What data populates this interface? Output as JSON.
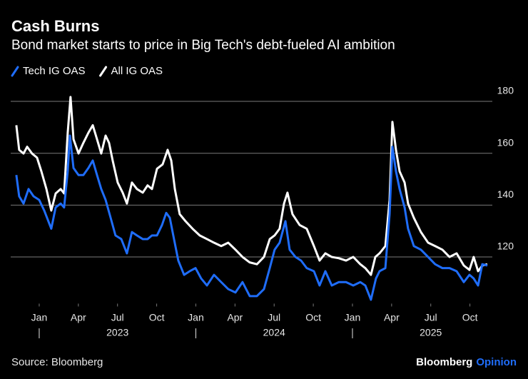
{
  "chart_data": {
    "type": "line",
    "title": "Cash Burns",
    "subtitle": "Bond market starts to price in Big Tech's debt-fueled AI ambition",
    "source": "Source: Bloomberg",
    "brand": "Bloomberg",
    "brand_suffix": "Opinion",
    "grid": true,
    "legend": "top-left",
    "xlim": [
      2022.818,
      2025.893
    ],
    "ylim": [
      102,
      184
    ],
    "yticks": [
      120,
      140,
      160,
      180
    ],
    "xticks": [
      {
        "value": 2023,
        "label": "Jan"
      },
      {
        "value": 2023.25,
        "label": "Apr"
      },
      {
        "value": 2023.5,
        "label": "Jul"
      },
      {
        "value": 2023.75,
        "label": "Oct"
      },
      {
        "value": 2024,
        "label": "Jan"
      },
      {
        "value": 2024.25,
        "label": "Apr"
      },
      {
        "value": 2024.5,
        "label": "Jul"
      },
      {
        "value": 2024.75,
        "label": "Oct"
      },
      {
        "value": 2025,
        "label": "Jan"
      },
      {
        "value": 2025.25,
        "label": "Apr"
      },
      {
        "value": 2025.5,
        "label": "Jul"
      },
      {
        "value": 2025.75,
        "label": "Oct"
      }
    ],
    "xgroups": [
      {
        "value": 2023.5,
        "label": "2023"
      },
      {
        "value": 2024.5,
        "label": "2024"
      },
      {
        "value": 2025.5,
        "label": "2025"
      }
    ],
    "series": [
      {
        "name": "Tech IG OAS",
        "color": "#1f6dfa",
        "x": [
          2022.854,
          2022.872,
          2022.9,
          2022.932,
          2022.964,
          2023.0,
          2023.032,
          2023.077,
          2023.105,
          2023.137,
          2023.159,
          2023.182,
          2023.196,
          2023.219,
          2023.251,
          2023.282,
          2023.314,
          2023.342,
          2023.369,
          2023.396,
          2023.424,
          2023.456,
          2023.487,
          2023.524,
          2023.56,
          2023.592,
          2023.624,
          2023.661,
          2023.692,
          2023.72,
          2023.752,
          2023.784,
          2023.811,
          2023.834,
          2023.856,
          2023.888,
          2023.925,
          2023.961,
          2023.998,
          2024.034,
          2024.071,
          2024.116,
          2024.162,
          2024.207,
          2024.253,
          2024.298,
          2024.344,
          2024.39,
          2024.435,
          2024.472,
          2024.503,
          2024.535,
          2024.572,
          2024.599,
          2024.636,
          2024.672,
          2024.708,
          2024.754,
          2024.79,
          2024.827,
          2024.868,
          2024.913,
          2024.959,
          2025.005,
          2025.05,
          2025.082,
          2025.118,
          2025.15,
          2025.173,
          2025.21,
          2025.237,
          2025.255,
          2025.278,
          2025.301,
          2025.333,
          2025.355,
          2025.392,
          2025.437,
          2025.483,
          2025.528,
          2025.574,
          2025.62,
          2025.665,
          2025.711,
          2025.747,
          2025.774,
          2025.802,
          2025.829,
          2025.861
        ],
        "values": [
          151.6,
          143.4,
          140.6,
          146.2,
          143.4,
          142.0,
          137.9,
          130.9,
          139.1,
          140.6,
          139.1,
          153.0,
          166.8,
          154.3,
          151.6,
          151.6,
          154.3,
          157.2,
          151.6,
          146.2,
          142.0,
          135.1,
          128.3,
          126.9,
          121.4,
          129.6,
          128.3,
          126.9,
          126.9,
          128.3,
          128.3,
          132.3,
          137.0,
          135.1,
          128.3,
          118.6,
          113.1,
          114.5,
          115.7,
          111.7,
          109.0,
          113.1,
          110.3,
          107.6,
          106.3,
          110.3,
          104.9,
          104.9,
          107.6,
          115.7,
          122.8,
          125.5,
          133.8,
          122.8,
          120.0,
          118.6,
          115.7,
          114.5,
          109.0,
          114.5,
          109.0,
          110.3,
          110.3,
          109.0,
          110.3,
          109.0,
          103.5,
          111.7,
          114.5,
          115.7,
          136.5,
          162.5,
          153.0,
          146.2,
          139.1,
          130.9,
          124.2,
          122.8,
          120.0,
          117.2,
          115.7,
          115.7,
          114.5,
          110.3,
          113.1,
          111.7,
          109.0,
          117.2,
          116.7
        ]
      },
      {
        "name": "All IG OAS",
        "color": "#ffffff",
        "x": [
          2022.854,
          2022.872,
          2022.9,
          2022.923,
          2022.954,
          2022.986,
          2023.014,
          2023.046,
          2023.077,
          2023.105,
          2023.137,
          2023.159,
          2023.182,
          2023.2,
          2023.219,
          2023.251,
          2023.282,
          2023.314,
          2023.342,
          2023.369,
          2023.396,
          2023.424,
          2023.446,
          2023.469,
          2023.501,
          2023.533,
          2023.56,
          2023.592,
          2023.624,
          2023.661,
          2023.692,
          2023.72,
          2023.752,
          2023.788,
          2023.82,
          2023.843,
          2023.866,
          2023.897,
          2023.934,
          2023.979,
          2024.025,
          2024.071,
          2024.116,
          2024.162,
          2024.207,
          2024.253,
          2024.298,
          2024.344,
          2024.39,
          2024.435,
          2024.472,
          2024.503,
          2024.535,
          2024.563,
          2024.585,
          2024.617,
          2024.663,
          2024.708,
          2024.754,
          2024.79,
          2024.827,
          2024.868,
          2024.913,
          2024.959,
          2025.005,
          2025.05,
          2025.082,
          2025.118,
          2025.146,
          2025.173,
          2025.21,
          2025.237,
          2025.255,
          2025.278,
          2025.301,
          2025.333,
          2025.355,
          2025.392,
          2025.437,
          2025.483,
          2025.528,
          2025.574,
          2025.62,
          2025.665,
          2025.711,
          2025.747,
          2025.774,
          2025.802,
          2025.829,
          2025.861
        ],
        "values": [
          170.8,
          161.3,
          159.9,
          162.5,
          159.9,
          158.3,
          153.0,
          146.2,
          137.9,
          144.5,
          146.2,
          144.5,
          167.9,
          181.7,
          165.4,
          159.9,
          164.0,
          167.9,
          170.8,
          165.4,
          159.9,
          166.8,
          164.0,
          157.2,
          148.7,
          144.8,
          140.6,
          148.7,
          146.2,
          144.8,
          147.6,
          146.2,
          154.0,
          155.7,
          161.3,
          157.2,
          146.2,
          136.5,
          133.8,
          130.9,
          128.3,
          126.9,
          125.5,
          124.2,
          125.5,
          122.8,
          120.0,
          117.9,
          117.2,
          120.0,
          126.9,
          128.3,
          130.9,
          140.6,
          144.8,
          136.5,
          132.3,
          130.9,
          124.2,
          118.6,
          121.4,
          120.0,
          119.5,
          118.6,
          120.0,
          117.2,
          115.7,
          113.1,
          120.0,
          121.4,
          124.2,
          142.0,
          172.1,
          161.3,
          153.0,
          148.7,
          140.6,
          135.1,
          129.6,
          125.5,
          124.2,
          122.8,
          120.0,
          121.4,
          116.7,
          115.0,
          120.0,
          114.5,
          116.7,
          117.2
        ]
      }
    ]
  }
}
